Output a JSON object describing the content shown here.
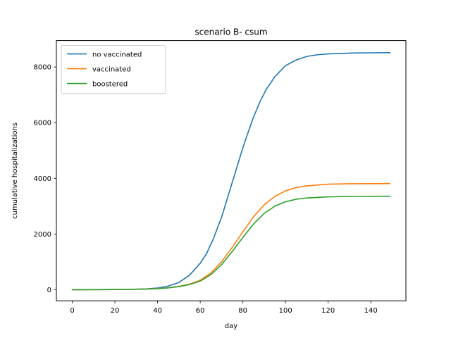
{
  "chart_data": {
    "type": "line",
    "title": "scenario B- csum",
    "xlabel": "day",
    "ylabel": "cumulative hospitalizations",
    "xlim": [
      -7.45,
      156.45
    ],
    "ylim": [
      -400,
      8950
    ],
    "xticks": [
      0,
      20,
      40,
      60,
      80,
      100,
      120,
      140
    ],
    "yticks": [
      0,
      2000,
      4000,
      6000,
      8000
    ],
    "grid": false,
    "legend_position": "upper left",
    "series": [
      {
        "name": "no vaccinated",
        "color": "#1f77b4",
        "x": [
          0,
          10,
          20,
          25,
          30,
          35,
          40,
          45,
          50,
          55,
          60,
          63,
          66,
          70,
          74,
          78,
          80,
          82,
          85,
          88,
          91,
          95,
          100,
          105,
          110,
          115,
          120,
          130,
          140,
          149
        ],
        "y": [
          0,
          2,
          6,
          10,
          18,
          30,
          60,
          130,
          260,
          520,
          950,
          1300,
          1800,
          2600,
          3600,
          4600,
          5100,
          5550,
          6200,
          6750,
          7200,
          7650,
          8050,
          8250,
          8380,
          8440,
          8470,
          8500,
          8510,
          8515
        ]
      },
      {
        "name": "vaccinated",
        "color": "#ff7f0e",
        "x": [
          0,
          10,
          20,
          25,
          30,
          35,
          40,
          45,
          50,
          55,
          60,
          65,
          70,
          75,
          80,
          85,
          90,
          95,
          100,
          105,
          110,
          120,
          130,
          140,
          149
        ],
        "y": [
          0,
          2,
          6,
          10,
          15,
          24,
          40,
          70,
          120,
          200,
          340,
          600,
          1000,
          1520,
          2080,
          2620,
          3050,
          3350,
          3550,
          3670,
          3730,
          3790,
          3805,
          3810,
          3812
        ]
      },
      {
        "name": "boostered",
        "color": "#2ca02c",
        "x": [
          0,
          10,
          20,
          25,
          30,
          35,
          40,
          45,
          50,
          55,
          60,
          65,
          70,
          75,
          80,
          85,
          90,
          95,
          100,
          105,
          110,
          120,
          130,
          140,
          149
        ],
        "y": [
          0,
          2,
          6,
          10,
          15,
          23,
          38,
          65,
          110,
          185,
          310,
          540,
          900,
          1370,
          1880,
          2360,
          2740,
          3000,
          3160,
          3250,
          3295,
          3335,
          3350,
          3355,
          3357
        ]
      }
    ]
  }
}
